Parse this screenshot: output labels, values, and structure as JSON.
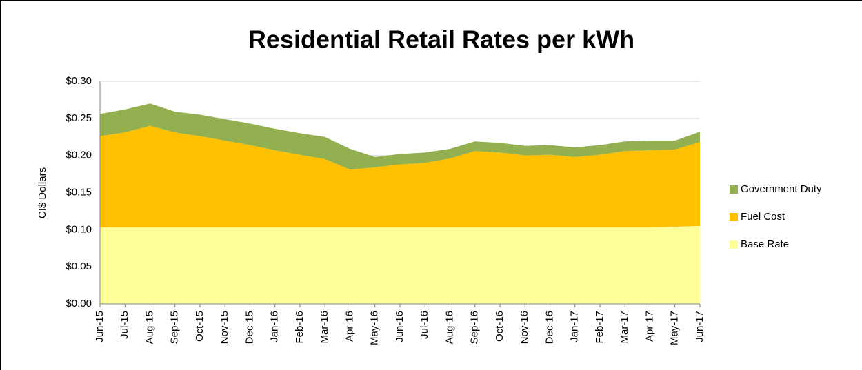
{
  "chart_data": {
    "type": "stacked_area",
    "title": "Residential Retail Rates per kWh",
    "y_label": "CI$ Dollars",
    "categories": [
      "Jun-15",
      "Jul-15",
      "Aug-15",
      "Sep-15",
      "Oct-15",
      "Nov-15",
      "Dec-15",
      "Jan-16",
      "Feb-16",
      "Mar-16",
      "Apr-16",
      "May-16",
      "Jun-16",
      "Jul-16",
      "Aug-16",
      "Sep-16",
      "Oct-16",
      "Nov-16",
      "Dec-16",
      "Jan-17",
      "Feb-17",
      "Mar-17",
      "Apr-17",
      "May-17",
      "Jun-17"
    ],
    "series": [
      {
        "name": "Base Rate",
        "color": "#ffff99",
        "values": [
          0.103,
          0.103,
          0.103,
          0.103,
          0.103,
          0.103,
          0.103,
          0.103,
          0.103,
          0.103,
          0.103,
          0.103,
          0.103,
          0.103,
          0.103,
          0.103,
          0.103,
          0.103,
          0.103,
          0.103,
          0.103,
          0.103,
          0.103,
          0.104,
          0.105
        ]
      },
      {
        "name": "Fuel Cost",
        "color": "#ffc000",
        "values": [
          0.123,
          0.128,
          0.137,
          0.128,
          0.123,
          0.117,
          0.111,
          0.104,
          0.098,
          0.092,
          0.078,
          0.081,
          0.085,
          0.087,
          0.093,
          0.103,
          0.101,
          0.097,
          0.098,
          0.095,
          0.098,
          0.103,
          0.104,
          0.104,
          0.113
        ]
      },
      {
        "name": "Government Duty",
        "color": "#92b050",
        "values": [
          0.03,
          0.031,
          0.03,
          0.028,
          0.029,
          0.029,
          0.029,
          0.029,
          0.029,
          0.03,
          0.028,
          0.014,
          0.014,
          0.014,
          0.013,
          0.013,
          0.013,
          0.013,
          0.013,
          0.013,
          0.013,
          0.013,
          0.013,
          0.012,
          0.014
        ]
      }
    ],
    "ylim": [
      0,
      0.3
    ],
    "yticks": [
      {
        "value": 0,
        "label": "$0.00"
      },
      {
        "value": 0.05,
        "label": "$0.05"
      },
      {
        "value": 0.1,
        "label": "$0.10"
      },
      {
        "value": 0.15,
        "label": "$0.15"
      },
      {
        "value": 0.2,
        "label": "$0.20"
      },
      {
        "value": 0.25,
        "label": "$0.25"
      },
      {
        "value": 0.3,
        "label": "$0.30"
      }
    ],
    "grid": true,
    "legend": "right"
  }
}
